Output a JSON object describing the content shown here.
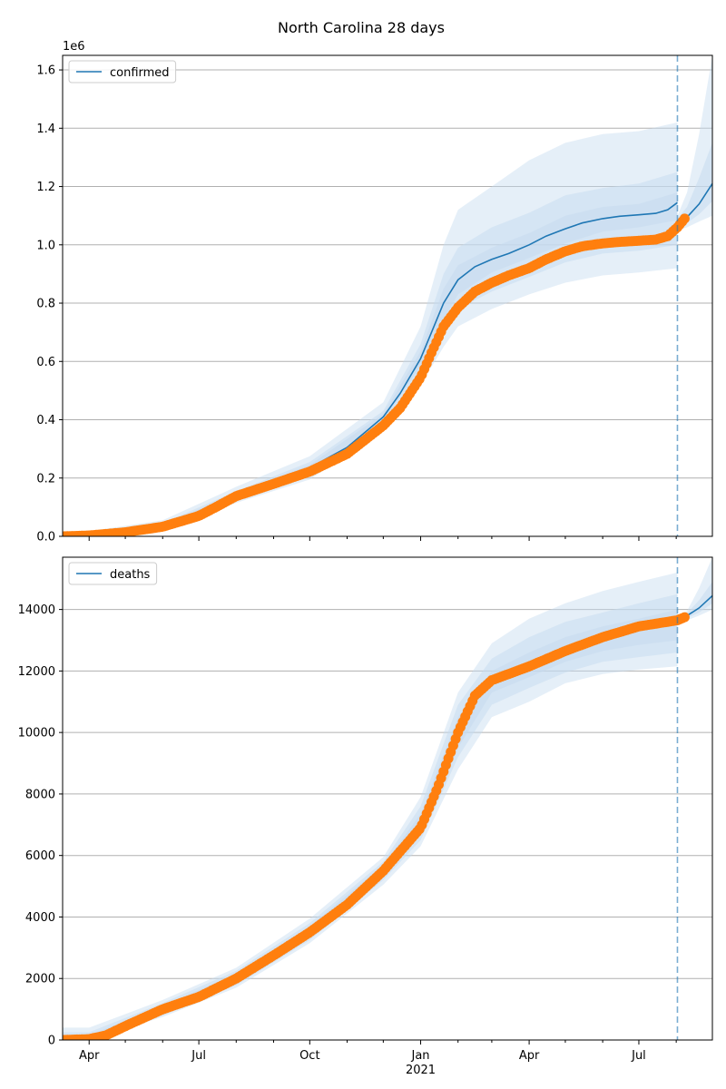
{
  "title": "North Carolina 28 days",
  "chart_data": [
    {
      "type": "line",
      "panel": "top",
      "offset_text": "1e6",
      "xlim": [
        "2020-03-10",
        "2021-08-31"
      ],
      "ylim": [
        0,
        1650000
      ],
      "yticks": [
        0,
        200000,
        400000,
        600000,
        800000,
        1000000,
        1200000,
        1400000,
        1600000
      ],
      "ytick_labels": [
        "0.0",
        "0.2",
        "0.4",
        "0.6",
        "0.8",
        "1.0",
        "1.2",
        "1.4",
        "1.6"
      ],
      "grid": "horizontal",
      "legend": {
        "position": "top-left",
        "entries": [
          "confirmed"
        ]
      },
      "forecast_date": "2021-08-02",
      "colors": {
        "model": "#1f77b4",
        "observed": "#ff7f0e",
        "band": "#c6dbef",
        "vline": "#1f77b4"
      },
      "series": [
        {
          "name": "confirmed",
          "kind": "model",
          "x": [
            "2020-03-10",
            "2020-04-01",
            "2020-05-01",
            "2020-06-01",
            "2020-07-01",
            "2020-07-15",
            "2020-08-01",
            "2020-09-01",
            "2020-10-01",
            "2020-11-01",
            "2020-12-01",
            "2020-12-15",
            "2021-01-01",
            "2021-01-10",
            "2021-01-20",
            "2021-02-01",
            "2021-02-15",
            "2021-03-01",
            "2021-03-15",
            "2021-04-01",
            "2021-04-15",
            "2021-05-01",
            "2021-05-15",
            "2021-06-01",
            "2021-06-15",
            "2021-07-01",
            "2021-07-15",
            "2021-07-25",
            "2021-08-02"
          ],
          "y": [
            0,
            3000,
            14000,
            35000,
            72000,
            105000,
            140000,
            185000,
            235000,
            305000,
            410000,
            490000,
            610000,
            700000,
            800000,
            880000,
            925000,
            950000,
            970000,
            1000000,
            1030000,
            1055000,
            1075000,
            1090000,
            1098000,
            1103000,
            1108000,
            1120000,
            1145000
          ]
        },
        {
          "name": "confirmed forecast",
          "kind": "forecast",
          "x": [
            "2021-08-02",
            "2021-08-10",
            "2021-08-20",
            "2021-08-31"
          ],
          "y": [
            1080000,
            1095000,
            1140000,
            1210000
          ]
        },
        {
          "name": "observed confirmed",
          "kind": "observed",
          "x": [
            "2020-03-10",
            "2020-04-01",
            "2020-05-01",
            "2020-06-01",
            "2020-07-01",
            "2020-07-15",
            "2020-08-01",
            "2020-09-01",
            "2020-10-01",
            "2020-11-01",
            "2020-12-01",
            "2020-12-15",
            "2021-01-01",
            "2021-01-10",
            "2021-01-20",
            "2021-02-01",
            "2021-02-15",
            "2021-03-01",
            "2021-03-15",
            "2021-04-01",
            "2021-04-15",
            "2021-05-01",
            "2021-05-15",
            "2021-06-01",
            "2021-06-15",
            "2021-07-01",
            "2021-07-15",
            "2021-07-25",
            "2021-08-02",
            "2021-08-08"
          ],
          "y": [
            0,
            3000,
            14000,
            33000,
            70000,
            100000,
            138000,
            180000,
            222000,
            283000,
            380000,
            440000,
            545000,
            630000,
            720000,
            785000,
            840000,
            870000,
            895000,
            920000,
            950000,
            978000,
            995000,
            1005000,
            1010000,
            1014000,
            1018000,
            1030000,
            1060000,
            1090000
          ]
        }
      ],
      "bands": [
        {
          "level": "outer",
          "x": [
            "2020-03-10",
            "2020-06-01",
            "2020-08-01",
            "2020-10-01",
            "2020-12-01",
            "2021-01-01",
            "2021-01-20",
            "2021-02-01",
            "2021-03-01",
            "2021-04-01",
            "2021-05-01",
            "2021-06-01",
            "2021-07-01",
            "2021-08-02"
          ],
          "upper": [
            4000,
            55000,
            170000,
            275000,
            460000,
            720000,
            1000000,
            1120000,
            1200000,
            1290000,
            1350000,
            1380000,
            1390000,
            1420000
          ],
          "lower": [
            0,
            22000,
            115000,
            195000,
            360000,
            520000,
            650000,
            720000,
            780000,
            830000,
            870000,
            895000,
            905000,
            920000
          ]
        },
        {
          "level": "middle",
          "x": [
            "2020-03-10",
            "2020-06-01",
            "2020-08-01",
            "2020-10-01",
            "2020-12-01",
            "2021-01-01",
            "2021-01-20",
            "2021-02-01",
            "2021-03-01",
            "2021-04-01",
            "2021-05-01",
            "2021-06-01",
            "2021-07-01",
            "2021-08-02"
          ],
          "upper": [
            2500,
            45000,
            155000,
            255000,
            430000,
            660000,
            900000,
            990000,
            1060000,
            1110000,
            1170000,
            1195000,
            1210000,
            1250000
          ],
          "lower": [
            0,
            28000,
            125000,
            210000,
            380000,
            560000,
            700000,
            780000,
            840000,
            890000,
            940000,
            970000,
            980000,
            1000000
          ]
        },
        {
          "level": "inner",
          "x": [
            "2020-03-10",
            "2020-06-01",
            "2020-08-01",
            "2020-10-01",
            "2020-12-01",
            "2021-01-01",
            "2021-01-20",
            "2021-02-01",
            "2021-03-01",
            "2021-04-01",
            "2021-05-01",
            "2021-06-01",
            "2021-07-01",
            "2021-08-02"
          ],
          "upper": [
            1500,
            40000,
            148000,
            245000,
            420000,
            635000,
            850000,
            930000,
            990000,
            1040000,
            1100000,
            1130000,
            1140000,
            1180000
          ],
          "lower": [
            0,
            31000,
            132000,
            222000,
            395000,
            585000,
            745000,
            830000,
            905000,
            955000,
            1005000,
            1045000,
            1060000,
            1085000
          ]
        },
        {
          "level": "forecast-outer",
          "x": [
            "2021-08-02",
            "2021-08-10",
            "2021-08-20",
            "2021-08-31"
          ],
          "upper": [
            1100000,
            1180000,
            1380000,
            1650000
          ],
          "lower": [
            1050000,
            1060000,
            1080000,
            1100000
          ]
        },
        {
          "level": "forecast-inner",
          "x": [
            "2021-08-02",
            "2021-08-10",
            "2021-08-20",
            "2021-08-31"
          ],
          "upper": [
            1090000,
            1130000,
            1230000,
            1350000
          ],
          "lower": [
            1065000,
            1075000,
            1105000,
            1150000
          ]
        }
      ]
    },
    {
      "type": "line",
      "panel": "bottom",
      "xlim": [
        "2020-03-10",
        "2021-08-31"
      ],
      "ylim": [
        0,
        15700
      ],
      "yticks": [
        0,
        2000,
        4000,
        6000,
        8000,
        10000,
        12000,
        14000
      ],
      "ytick_labels": [
        "0",
        "2000",
        "4000",
        "6000",
        "8000",
        "10000",
        "12000",
        "14000"
      ],
      "xticks": [
        "2020-04-01",
        "2020-07-01",
        "2020-10-01",
        "2021-01-01",
        "2021-04-01",
        "2021-07-01"
      ],
      "xtick_labels": [
        "Apr",
        "Jul",
        "Oct",
        "Jan",
        "Apr",
        "Jul"
      ],
      "xtick_sublabel": "2021",
      "xminor_ticks": [
        "2020-05-01",
        "2020-06-01",
        "2020-08-01",
        "2020-09-01",
        "2020-11-01",
        "2020-12-01",
        "2021-02-01",
        "2021-03-01",
        "2021-05-01",
        "2021-06-01",
        "2021-08-01",
        "2021-09-01"
      ],
      "grid": "horizontal",
      "legend": {
        "position": "top-left",
        "entries": [
          "deaths"
        ]
      },
      "forecast_date": "2021-08-02",
      "colors": {
        "model": "#1f77b4",
        "observed": "#ff7f0e",
        "band": "#c6dbef",
        "vline": "#1f77b4"
      },
      "series": [
        {
          "name": "deaths",
          "kind": "model",
          "x": [
            "2020-03-10",
            "2020-04-15",
            "2020-05-01",
            "2020-06-01",
            "2020-07-01",
            "2020-08-01",
            "2020-09-01",
            "2020-10-01",
            "2020-11-01",
            "2020-12-01",
            "2021-01-01",
            "2021-01-15",
            "2021-02-01",
            "2021-02-15",
            "2021-03-01",
            "2021-04-01",
            "2021-05-01",
            "2021-06-01",
            "2021-07-01",
            "2021-08-02"
          ],
          "y": [
            0,
            150,
            450,
            1000,
            1450,
            2050,
            2800,
            3550,
            4350,
            5500,
            7000,
            8200,
            10000,
            11200,
            11700,
            12150,
            12650,
            13100,
            13450,
            13700
          ]
        },
        {
          "name": "deaths forecast",
          "kind": "forecast",
          "x": [
            "2021-08-02",
            "2021-08-10",
            "2021-08-20",
            "2021-08-31"
          ],
          "y": [
            13700,
            13800,
            14050,
            14450
          ]
        },
        {
          "name": "observed deaths",
          "kind": "observed",
          "x": [
            "2020-03-10",
            "2020-04-01",
            "2020-04-15",
            "2020-05-01",
            "2020-06-01",
            "2020-07-01",
            "2020-08-01",
            "2020-09-01",
            "2020-10-01",
            "2020-11-01",
            "2020-12-01",
            "2021-01-01",
            "2021-01-15",
            "2021-02-01",
            "2021-02-15",
            "2021-03-01",
            "2021-04-01",
            "2021-05-01",
            "2021-06-01",
            "2021-07-01",
            "2021-08-02",
            "2021-08-08"
          ],
          "y": [
            0,
            30,
            150,
            450,
            1000,
            1400,
            2000,
            2750,
            3500,
            4400,
            5500,
            6900,
            8200,
            10000,
            11200,
            11700,
            12150,
            12650,
            13100,
            13450,
            13650,
            13750
          ]
        }
      ],
      "bands": [
        {
          "level": "outer",
          "x": [
            "2020-03-10",
            "2020-04-01",
            "2020-06-01",
            "2020-08-01",
            "2020-10-01",
            "2020-12-01",
            "2021-01-01",
            "2021-02-01",
            "2021-03-01",
            "2021-04-01",
            "2021-05-01",
            "2021-06-01",
            "2021-07-01",
            "2021-08-02"
          ],
          "upper": [
            400,
            400,
            1300,
            2350,
            3950,
            5950,
            7900,
            11300,
            12900,
            13700,
            14200,
            14600,
            14900,
            15200
          ],
          "lower": [
            0,
            0,
            750,
            1700,
            3150,
            5050,
            6300,
            8800,
            10500,
            11000,
            11600,
            11900,
            12050,
            12150
          ]
        },
        {
          "level": "middle",
          "x": [
            "2020-03-10",
            "2020-04-01",
            "2020-06-01",
            "2020-08-01",
            "2020-10-01",
            "2020-12-01",
            "2021-01-01",
            "2021-02-01",
            "2021-03-01",
            "2021-04-01",
            "2021-05-01",
            "2021-06-01",
            "2021-07-01",
            "2021-08-02"
          ],
          "upper": [
            250,
            250,
            1200,
            2250,
            3800,
            5800,
            7600,
            10900,
            12400,
            13100,
            13600,
            13900,
            14200,
            14500
          ],
          "lower": [
            0,
            0,
            800,
            1780,
            3250,
            5200,
            6500,
            9200,
            10900,
            11450,
            11950,
            12300,
            12450,
            12600
          ]
        },
        {
          "level": "inner",
          "x": [
            "2020-03-10",
            "2020-04-01",
            "2020-06-01",
            "2020-08-01",
            "2020-10-01",
            "2020-12-01",
            "2021-01-01",
            "2021-02-01",
            "2021-03-01",
            "2021-04-01",
            "2021-05-01",
            "2021-06-01",
            "2021-07-01",
            "2021-08-02"
          ],
          "upper": [
            150,
            150,
            1120,
            2150,
            3700,
            5700,
            7350,
            10500,
            12000,
            12600,
            13100,
            13450,
            13700,
            14000
          ],
          "lower": [
            0,
            0,
            880,
            1860,
            3350,
            5320,
            6700,
            9500,
            11300,
            11800,
            12300,
            12650,
            12850,
            13000
          ]
        },
        {
          "level": "forecast-outer",
          "x": [
            "2021-08-02",
            "2021-08-10",
            "2021-08-20",
            "2021-08-31"
          ],
          "upper": [
            13800,
            13950,
            14700,
            15700
          ],
          "lower": [
            13600,
            13650,
            13800,
            14000
          ]
        },
        {
          "level": "forecast-inner",
          "x": [
            "2021-08-02",
            "2021-08-10",
            "2021-08-20",
            "2021-08-31"
          ],
          "upper": [
            13750,
            13880,
            14300,
            14900
          ],
          "lower": [
            13650,
            13720,
            13900,
            14200
          ]
        }
      ]
    }
  ]
}
